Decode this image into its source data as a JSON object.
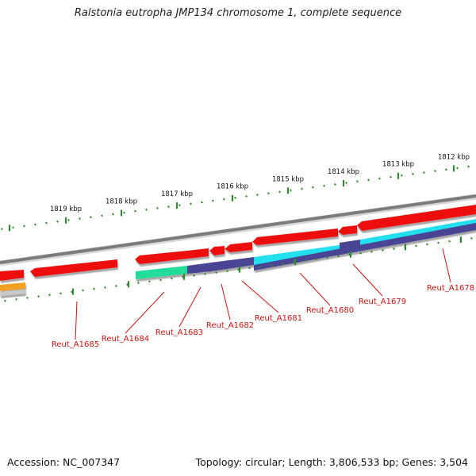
{
  "title": "Ralstonia eutropha JMP134 chromosome 1, complete sequence",
  "accession": "Accession: NC_007347",
  "topology": "Topology: circular; Length: 3,806,533 bp; Genes: 3,504",
  "colors": {
    "backbone": "#8a8a8a",
    "gene_red": "#ee1111",
    "gene_cyan": "#22e0ee",
    "gene_purple": "#4a4494",
    "gene_green": "#22dd99",
    "gene_orange": "#f0a020",
    "tick": "#338833",
    "label": "#cc1111"
  },
  "ruler": {
    "ticks": [
      {
        "label": "1812 kbp"
      },
      {
        "label": "1813 kbp"
      },
      {
        "label": "1814 kbp"
      },
      {
        "label": "1815 kbp"
      },
      {
        "label": "1816 kbp"
      },
      {
        "label": "1817 kbp"
      },
      {
        "label": "1818 kbp"
      },
      {
        "label": "1819 kbp"
      }
    ]
  },
  "gene_labels": [
    {
      "label": "Reut_A1685"
    },
    {
      "label": "Reut_A1684"
    },
    {
      "label": "Reut_A1683"
    },
    {
      "label": "Reut_A1682"
    },
    {
      "label": "Reut_A1681"
    },
    {
      "label": "Reut_A1680"
    },
    {
      "label": "Reut_A1679"
    },
    {
      "label": "Reut_A1678"
    }
  ]
}
